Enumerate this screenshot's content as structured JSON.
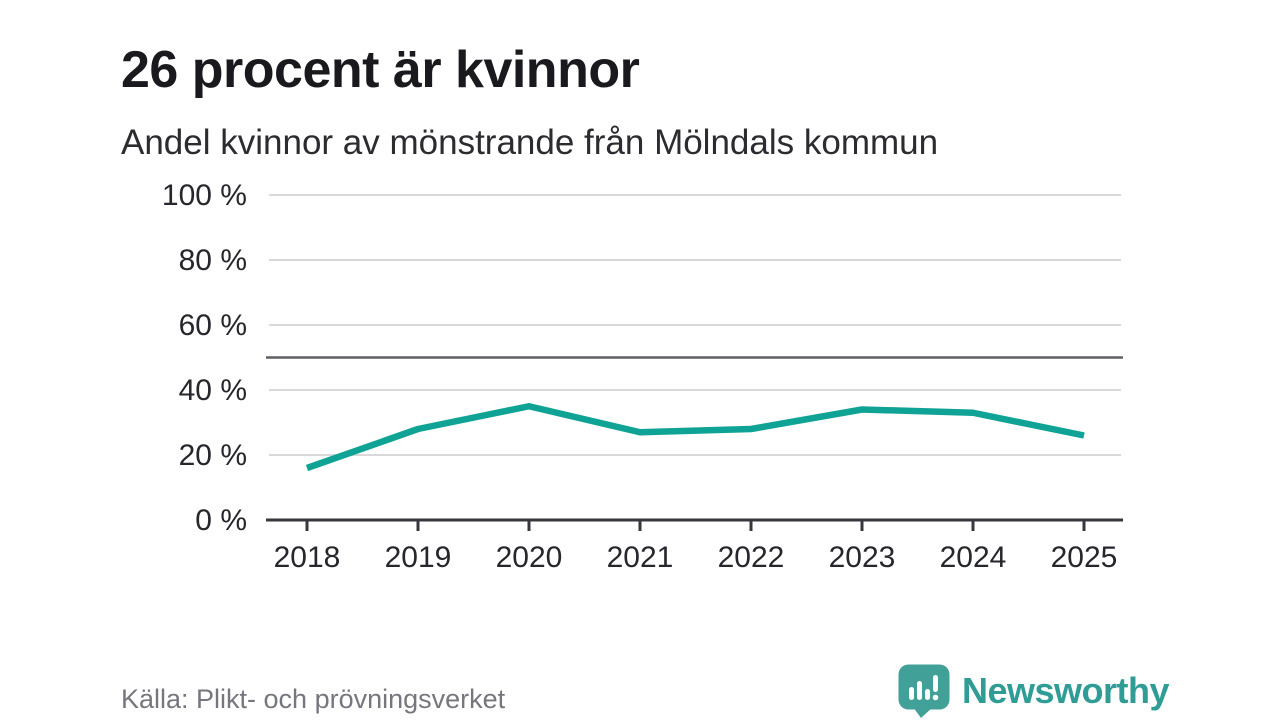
{
  "header": {
    "title": "26 procent är kvinnor",
    "subtitle": "Andel kvinnor av mönstrande från Mölndals kommun"
  },
  "chart_data": {
    "type": "line",
    "title": "26 procent är kvinnor",
    "subtitle": "Andel kvinnor av mönstrande från Mölndals kommun",
    "categories": [
      "2018",
      "2019",
      "2020",
      "2021",
      "2022",
      "2023",
      "2024",
      "2025"
    ],
    "series": [
      {
        "name": "Andel kvinnor av mönstrande",
        "values": [
          16,
          28,
          35,
          27,
          28,
          34,
          33,
          26
        ]
      }
    ],
    "unit": "%",
    "ylim": [
      0,
      100
    ],
    "yticks": [
      0,
      20,
      40,
      60,
      80,
      100
    ],
    "ytick_labels": [
      "0 %",
      "20 %",
      "40 %",
      "60 %",
      "80 %",
      "100 %"
    ],
    "reference_line": 50,
    "grid": true,
    "legend": "none",
    "colors": {
      "line": "#0fa396",
      "grid": "#d9d9d9",
      "reference": "#5f5f68",
      "axis": "#37373e",
      "tick_label": "#26262c"
    }
  },
  "footer": {
    "source": "Källa: Plikt- och prövningsverket",
    "brand": "Newsworthy",
    "brand_color": "#2f9d95",
    "logo_icon": "bar-chart-speech-bubble-icon",
    "logo_bubble_color": "#41a199",
    "logo_bars_color": "#ffffff"
  }
}
